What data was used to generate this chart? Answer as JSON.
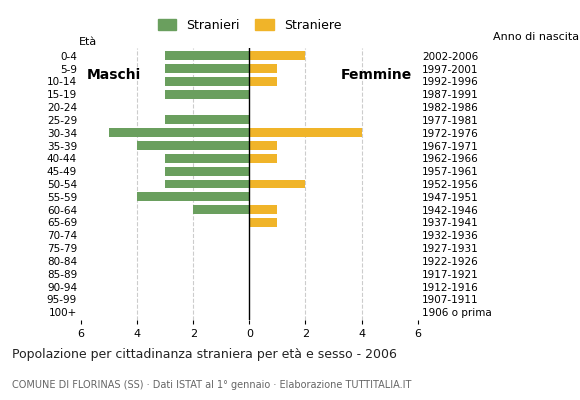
{
  "age_groups": [
    "100+",
    "95-99",
    "90-94",
    "85-89",
    "80-84",
    "75-79",
    "70-74",
    "65-69",
    "60-64",
    "55-59",
    "50-54",
    "45-49",
    "40-44",
    "35-39",
    "30-34",
    "25-29",
    "20-24",
    "15-19",
    "10-14",
    "5-9",
    "0-4"
  ],
  "birth_years": [
    "1906 o prima",
    "1907-1911",
    "1912-1916",
    "1917-1921",
    "1922-1926",
    "1927-1931",
    "1932-1936",
    "1937-1941",
    "1942-1946",
    "1947-1951",
    "1952-1956",
    "1957-1961",
    "1962-1966",
    "1967-1971",
    "1972-1976",
    "1977-1981",
    "1982-1986",
    "1987-1991",
    "1992-1996",
    "1997-2001",
    "2002-2006"
  ],
  "males": [
    0,
    0,
    0,
    0,
    0,
    0,
    0,
    0,
    2,
    4,
    3,
    3,
    3,
    4,
    5,
    3,
    0,
    3,
    3,
    3,
    3
  ],
  "females": [
    0,
    0,
    0,
    0,
    0,
    0,
    0,
    1,
    1,
    0,
    2,
    0,
    1,
    1,
    4,
    0,
    0,
    0,
    1,
    1,
    2
  ],
  "male_color": "#6a9f5e",
  "female_color": "#f0b429",
  "title": "Popolazione per cittadinanza straniera per età e sesso - 2006",
  "subtitle": "COMUNE DI FLORINAS (SS) · Dati ISTAT al 1° gennaio · Elaborazione TUTTITALIA.IT",
  "legend_male": "Stranieri",
  "legend_female": "Straniere",
  "label_maschi": "Maschi",
  "label_femmine": "Femmine",
  "anno_nascita": "Anno di nascita",
  "eta_label": "Età",
  "xlim": 6,
  "background_color": "#ffffff",
  "grid_color": "#cccccc"
}
